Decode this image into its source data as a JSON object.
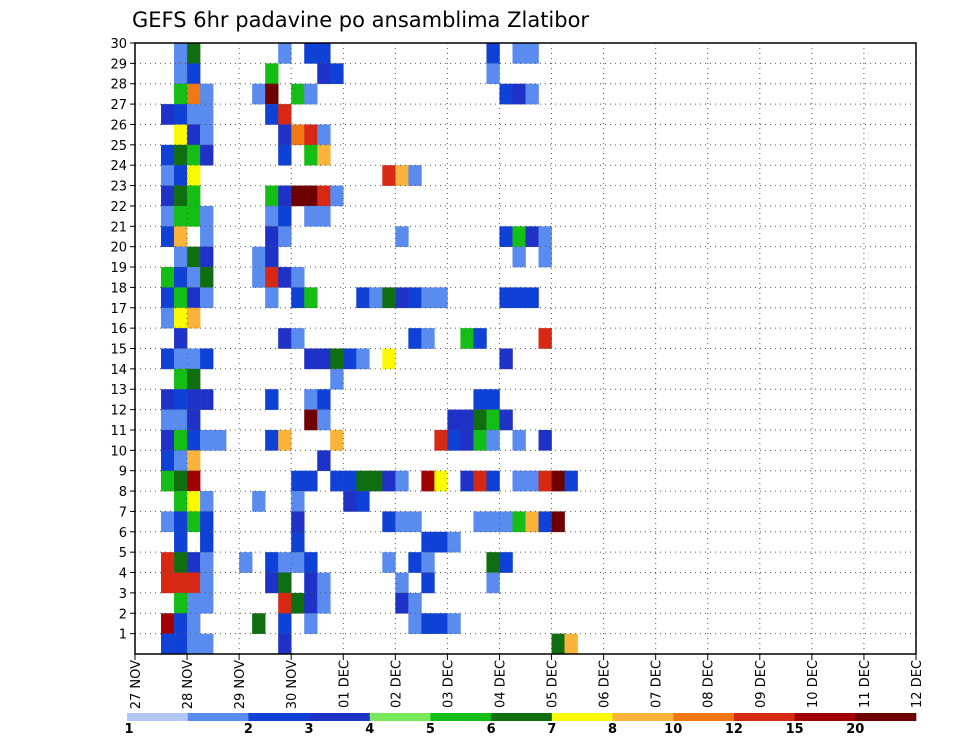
{
  "chart_data": {
    "type": "heatmap",
    "title": "GEFS 6hr padavine po ansamblima Zlatibor",
    "xlabel": "",
    "ylabel": "",
    "x_tick_labels": [
      "27 NOV",
      "28 NOV",
      "29 NOV",
      "30 NOV",
      "01 DEC",
      "02 DEC",
      "03 DEC",
      "04 DEC",
      "05 DEC",
      "06 DEC",
      "07 DEC",
      "08 DEC",
      "09 DEC",
      "10 DEC",
      "11 DEC",
      "12 DEC"
    ],
    "y_tick_labels": [
      "1",
      "2",
      "3",
      "4",
      "5",
      "6",
      "7",
      "8",
      "9",
      "10",
      "11",
      "12",
      "13",
      "14",
      "15",
      "16",
      "17",
      "18",
      "19",
      "20",
      "21",
      "22",
      "23",
      "24",
      "25",
      "26",
      "27",
      "28",
      "29",
      "30"
    ],
    "x_range_days": [
      0,
      15
    ],
    "steps_per_day": 4,
    "members": 30,
    "grid": "dotted",
    "legend_placement": "bottom",
    "legend": {
      "bounds": [
        "1",
        "2",
        "3",
        "4",
        "5",
        "6",
        "7",
        "8",
        "10",
        "12",
        "15",
        "20"
      ],
      "colors": [
        "#b4c8f5",
        "#5a8cf0",
        "#0f41d7",
        "#1e32c8",
        "#78ea5a",
        "#14be14",
        "#0f6e0f",
        "#fafa00",
        "#fab43c",
        "#f07814",
        "#d72814",
        "#a00000",
        "#6e0000"
      ]
    },
    "cells": [
      [
        30,
        3,
        1
      ],
      [
        30,
        4,
        6
      ],
      [
        30,
        11,
        1
      ],
      [
        30,
        13,
        2
      ],
      [
        30,
        14,
        2
      ],
      [
        30,
        27,
        2
      ],
      [
        30,
        29,
        1
      ],
      [
        30,
        30,
        1
      ],
      [
        29,
        3,
        1
      ],
      [
        29,
        4,
        2
      ],
      [
        29,
        10,
        5
      ],
      [
        29,
        14,
        3
      ],
      [
        29,
        15,
        2
      ],
      [
        29,
        27,
        1
      ],
      [
        28,
        3,
        5
      ],
      [
        28,
        4,
        9
      ],
      [
        28,
        5,
        1
      ],
      [
        28,
        9,
        1
      ],
      [
        28,
        10,
        12
      ],
      [
        28,
        12,
        5
      ],
      [
        28,
        13,
        1
      ],
      [
        28,
        28,
        2
      ],
      [
        28,
        29,
        3
      ],
      [
        28,
        30,
        1
      ],
      [
        27,
        2,
        3
      ],
      [
        27,
        3,
        2
      ],
      [
        27,
        4,
        1
      ],
      [
        27,
        5,
        1
      ],
      [
        27,
        10,
        2
      ],
      [
        27,
        11,
        10
      ],
      [
        26,
        3,
        7
      ],
      [
        26,
        4,
        3
      ],
      [
        26,
        5,
        1
      ],
      [
        26,
        11,
        3
      ],
      [
        26,
        12,
        9
      ],
      [
        26,
        13,
        10
      ],
      [
        26,
        14,
        1
      ],
      [
        25,
        2,
        2
      ],
      [
        25,
        3,
        6
      ],
      [
        25,
        4,
        5
      ],
      [
        25,
        5,
        3
      ],
      [
        25,
        11,
        2
      ],
      [
        25,
        13,
        5
      ],
      [
        25,
        14,
        8
      ],
      [
        24,
        2,
        1
      ],
      [
        24,
        3,
        2
      ],
      [
        24,
        4,
        7
      ],
      [
        24,
        19,
        10
      ],
      [
        24,
        20,
        8
      ],
      [
        24,
        21,
        1
      ],
      [
        23,
        2,
        3
      ],
      [
        23,
        3,
        6
      ],
      [
        23,
        4,
        5
      ],
      [
        23,
        10,
        5
      ],
      [
        23,
        11,
        3
      ],
      [
        23,
        12,
        12
      ],
      [
        23,
        13,
        12
      ],
      [
        23,
        14,
        10
      ],
      [
        23,
        15,
        1
      ],
      [
        22,
        2,
        1
      ],
      [
        22,
        3,
        5
      ],
      [
        22,
        4,
        5
      ],
      [
        22,
        5,
        1
      ],
      [
        22,
        10,
        1
      ],
      [
        22,
        11,
        2
      ],
      [
        22,
        13,
        1
      ],
      [
        22,
        14,
        1
      ],
      [
        21,
        2,
        2
      ],
      [
        21,
        3,
        8
      ],
      [
        21,
        5,
        1
      ],
      [
        21,
        10,
        3
      ],
      [
        21,
        11,
        1
      ],
      [
        21,
        20,
        1
      ],
      [
        21,
        28,
        2
      ],
      [
        21,
        29,
        5
      ],
      [
        21,
        30,
        3
      ],
      [
        21,
        31,
        1
      ],
      [
        20,
        3,
        1
      ],
      [
        20,
        4,
        6
      ],
      [
        20,
        5,
        3
      ],
      [
        20,
        9,
        1
      ],
      [
        20,
        10,
        3
      ],
      [
        20,
        29,
        1
      ],
      [
        20,
        31,
        1
      ],
      [
        19,
        2,
        5
      ],
      [
        19,
        3,
        2
      ],
      [
        19,
        4,
        1
      ],
      [
        19,
        5,
        6
      ],
      [
        19,
        9,
        1
      ],
      [
        19,
        10,
        10
      ],
      [
        19,
        11,
        3
      ],
      [
        19,
        12,
        1
      ],
      [
        18,
        2,
        2
      ],
      [
        18,
        3,
        5
      ],
      [
        18,
        4,
        3
      ],
      [
        18,
        5,
        1
      ],
      [
        18,
        10,
        1
      ],
      [
        18,
        12,
        2
      ],
      [
        18,
        13,
        5
      ],
      [
        18,
        17,
        2
      ],
      [
        18,
        18,
        1
      ],
      [
        18,
        19,
        6
      ],
      [
        18,
        20,
        3
      ],
      [
        18,
        21,
        2
      ],
      [
        18,
        22,
        1
      ],
      [
        18,
        23,
        1
      ],
      [
        18,
        28,
        2
      ],
      [
        18,
        29,
        2
      ],
      [
        18,
        30,
        2
      ],
      [
        17,
        2,
        1
      ],
      [
        17,
        3,
        7
      ],
      [
        17,
        4,
        8
      ],
      [
        16,
        3,
        3
      ],
      [
        16,
        11,
        3
      ],
      [
        16,
        12,
        1
      ],
      [
        16,
        21,
        2
      ],
      [
        16,
        22,
        1
      ],
      [
        16,
        25,
        5
      ],
      [
        16,
        26,
        2
      ],
      [
        16,
        31,
        10
      ],
      [
        15,
        2,
        2
      ],
      [
        15,
        3,
        1
      ],
      [
        15,
        4,
        1
      ],
      [
        15,
        5,
        2
      ],
      [
        15,
        13,
        3
      ],
      [
        15,
        14,
        3
      ],
      [
        15,
        15,
        6
      ],
      [
        15,
        16,
        2
      ],
      [
        15,
        17,
        1
      ],
      [
        15,
        19,
        7
      ],
      [
        15,
        28,
        3
      ],
      [
        14,
        3,
        5
      ],
      [
        14,
        4,
        6
      ],
      [
        14,
        15,
        1
      ],
      [
        13,
        2,
        3
      ],
      [
        13,
        3,
        2
      ],
      [
        13,
        4,
        3
      ],
      [
        13,
        5,
        3
      ],
      [
        13,
        10,
        2
      ],
      [
        13,
        13,
        1
      ],
      [
        13,
        14,
        2
      ],
      [
        13,
        26,
        2
      ],
      [
        13,
        27,
        2
      ],
      [
        12,
        2,
        1
      ],
      [
        12,
        3,
        1
      ],
      [
        12,
        4,
        3
      ],
      [
        12,
        13,
        12
      ],
      [
        12,
        14,
        1
      ],
      [
        12,
        24,
        3
      ],
      [
        12,
        25,
        3
      ],
      [
        12,
        26,
        6
      ],
      [
        12,
        27,
        5
      ],
      [
        12,
        28,
        3
      ],
      [
        11,
        2,
        3
      ],
      [
        11,
        3,
        5
      ],
      [
        11,
        4,
        2
      ],
      [
        11,
        5,
        1
      ],
      [
        11,
        6,
        1
      ],
      [
        11,
        10,
        2
      ],
      [
        11,
        11,
        8
      ],
      [
        11,
        15,
        8
      ],
      [
        11,
        23,
        10
      ],
      [
        11,
        24,
        2
      ],
      [
        11,
        25,
        3
      ],
      [
        11,
        26,
        5
      ],
      [
        11,
        27,
        1
      ],
      [
        11,
        29,
        1
      ],
      [
        11,
        31,
        3
      ],
      [
        10,
        2,
        2
      ],
      [
        10,
        3,
        1
      ],
      [
        10,
        4,
        8
      ],
      [
        10,
        14,
        3
      ],
      [
        9,
        2,
        5
      ],
      [
        9,
        3,
        6
      ],
      [
        9,
        4,
        11
      ],
      [
        9,
        12,
        2
      ],
      [
        9,
        13,
        2
      ],
      [
        9,
        15,
        2
      ],
      [
        9,
        16,
        2
      ],
      [
        9,
        17,
        6
      ],
      [
        9,
        18,
        6
      ],
      [
        9,
        19,
        3
      ],
      [
        9,
        20,
        1
      ],
      [
        9,
        22,
        11
      ],
      [
        9,
        23,
        7
      ],
      [
        9,
        25,
        3
      ],
      [
        9,
        26,
        10
      ],
      [
        9,
        27,
        2
      ],
      [
        9,
        29,
        1
      ],
      [
        9,
        30,
        1
      ],
      [
        9,
        31,
        10
      ],
      [
        9,
        32,
        12
      ],
      [
        9,
        33,
        2
      ],
      [
        8,
        3,
        5
      ],
      [
        8,
        4,
        7
      ],
      [
        8,
        5,
        1
      ],
      [
        8,
        9,
        1
      ],
      [
        8,
        12,
        1
      ],
      [
        8,
        16,
        3
      ],
      [
        8,
        17,
        2
      ],
      [
        7,
        2,
        1
      ],
      [
        7,
        3,
        2
      ],
      [
        7,
        4,
        5
      ],
      [
        7,
        5,
        2
      ],
      [
        7,
        12,
        3
      ],
      [
        7,
        19,
        2
      ],
      [
        7,
        20,
        1
      ],
      [
        7,
        21,
        1
      ],
      [
        7,
        26,
        1
      ],
      [
        7,
        27,
        1
      ],
      [
        7,
        28,
        1
      ],
      [
        7,
        29,
        5
      ],
      [
        7,
        30,
        8
      ],
      [
        7,
        31,
        2
      ],
      [
        7,
        32,
        12
      ],
      [
        6,
        3,
        2
      ],
      [
        6,
        5,
        2
      ],
      [
        6,
        12,
        2
      ],
      [
        6,
        22,
        2
      ],
      [
        6,
        23,
        2
      ],
      [
        6,
        24,
        1
      ],
      [
        5,
        2,
        10
      ],
      [
        5,
        3,
        6
      ],
      [
        5,
        4,
        3
      ],
      [
        5,
        5,
        1
      ],
      [
        5,
        8,
        1
      ],
      [
        5,
        10,
        2
      ],
      [
        5,
        11,
        1
      ],
      [
        5,
        12,
        1
      ],
      [
        5,
        13,
        2
      ],
      [
        5,
        19,
        1
      ],
      [
        5,
        21,
        2
      ],
      [
        5,
        22,
        1
      ],
      [
        5,
        27,
        6
      ],
      [
        5,
        28,
        2
      ],
      [
        4,
        2,
        10
      ],
      [
        4,
        3,
        10
      ],
      [
        4,
        4,
        10
      ],
      [
        4,
        5,
        1
      ],
      [
        4,
        10,
        3
      ],
      [
        4,
        11,
        6
      ],
      [
        4,
        13,
        3
      ],
      [
        4,
        14,
        1
      ],
      [
        4,
        20,
        1
      ],
      [
        4,
        22,
        2
      ],
      [
        4,
        27,
        1
      ],
      [
        3,
        3,
        5
      ],
      [
        3,
        4,
        1
      ],
      [
        3,
        5,
        1
      ],
      [
        3,
        11,
        10
      ],
      [
        3,
        12,
        6
      ],
      [
        3,
        13,
        3
      ],
      [
        3,
        14,
        1
      ],
      [
        3,
        20,
        3
      ],
      [
        3,
        21,
        1
      ],
      [
        2,
        2,
        11
      ],
      [
        2,
        3,
        2
      ],
      [
        2,
        4,
        1
      ],
      [
        2,
        9,
        6
      ],
      [
        2,
        11,
        2
      ],
      [
        2,
        13,
        1
      ],
      [
        2,
        21,
        1
      ],
      [
        2,
        22,
        2
      ],
      [
        2,
        23,
        2
      ],
      [
        2,
        24,
        1
      ],
      [
        1,
        2,
        2
      ],
      [
        1,
        3,
        2
      ],
      [
        1,
        4,
        1
      ],
      [
        1,
        5,
        1
      ],
      [
        1,
        11,
        3
      ],
      [
        1,
        32,
        6
      ],
      [
        1,
        33,
        8
      ]
    ]
  }
}
